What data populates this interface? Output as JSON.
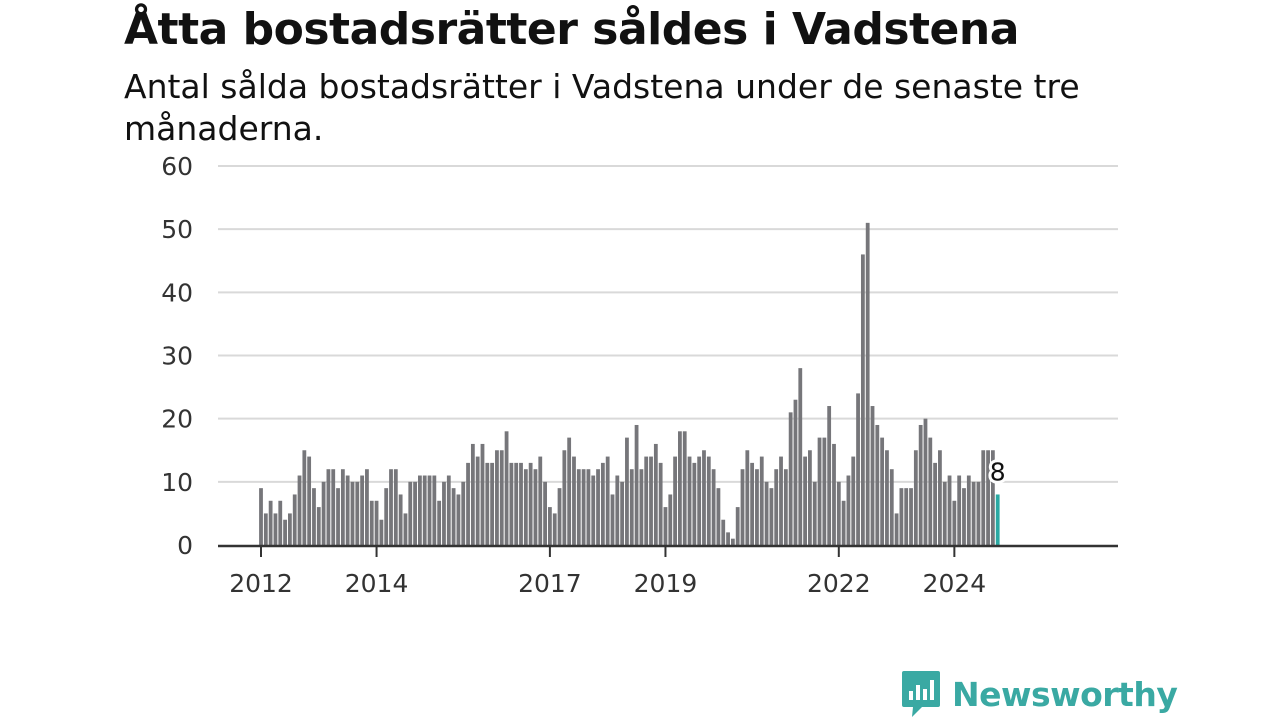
{
  "header": {
    "title": "Åtta bostadsrätter såldes i Vadstena",
    "subtitle": "Antal sålda bostadsrätter i Vadstena under de senaste tre månaderna."
  },
  "brand": {
    "name": "Newsworthy",
    "icon": "newsworthy-logo-icon",
    "color": "#3aa9a3"
  },
  "chart_data": {
    "type": "bar",
    "title": "Åtta bostadsrätter såldes i Vadstena",
    "subtitle": "Antal sålda bostadsrätter i Vadstena under de senaste tre månaderna.",
    "xlabel": "",
    "ylabel": "",
    "ylim": [
      0,
      60
    ],
    "yticks": [
      0,
      10,
      20,
      30,
      40,
      50,
      60
    ],
    "grid": true,
    "x_start": "2012-01",
    "x_end": "2025-03",
    "xticks": [
      {
        "label": "2012",
        "month": "2012-01"
      },
      {
        "label": "2014",
        "month": "2014-01"
      },
      {
        "label": "2017",
        "month": "2017-01"
      },
      {
        "label": "2019",
        "month": "2019-01"
      },
      {
        "label": "2022",
        "month": "2022-01"
      },
      {
        "label": "2024",
        "month": "2024-01"
      }
    ],
    "bar_color": "#76767a",
    "highlight_color": "#2aa9a3",
    "highlight_last": true,
    "last_value_label": "8",
    "values": [
      9,
      5,
      7,
      5,
      7,
      4,
      5,
      8,
      11,
      15,
      14,
      9,
      6,
      10,
      12,
      12,
      9,
      12,
      11,
      10,
      10,
      11,
      12,
      7,
      7,
      4,
      9,
      12,
      12,
      8,
      5,
      10,
      10,
      11,
      11,
      11,
      11,
      7,
      10,
      11,
      9,
      8,
      10,
      13,
      16,
      14,
      16,
      13,
      13,
      15,
      15,
      18,
      13,
      13,
      13,
      12,
      13,
      12,
      14,
      10,
      6,
      5,
      9,
      15,
      17,
      14,
      12,
      12,
      12,
      11,
      12,
      13,
      14,
      8,
      11,
      10,
      17,
      12,
      19,
      12,
      14,
      14,
      16,
      13,
      6,
      8,
      14,
      18,
      18,
      14,
      13,
      14,
      15,
      14,
      12,
      9,
      4,
      2,
      1,
      6,
      12,
      15,
      13,
      12,
      14,
      10,
      9,
      12,
      14,
      12,
      21,
      23,
      28,
      14,
      15,
      10,
      17,
      17,
      22,
      16,
      10,
      7,
      11,
      14,
      24,
      46,
      51,
      22,
      19,
      17,
      15,
      12,
      5,
      9,
      9,
      9,
      15,
      19,
      20,
      17,
      13,
      15,
      10,
      11,
      7,
      11,
      9,
      11,
      10,
      10,
      15,
      15,
      15,
      8
    ]
  }
}
